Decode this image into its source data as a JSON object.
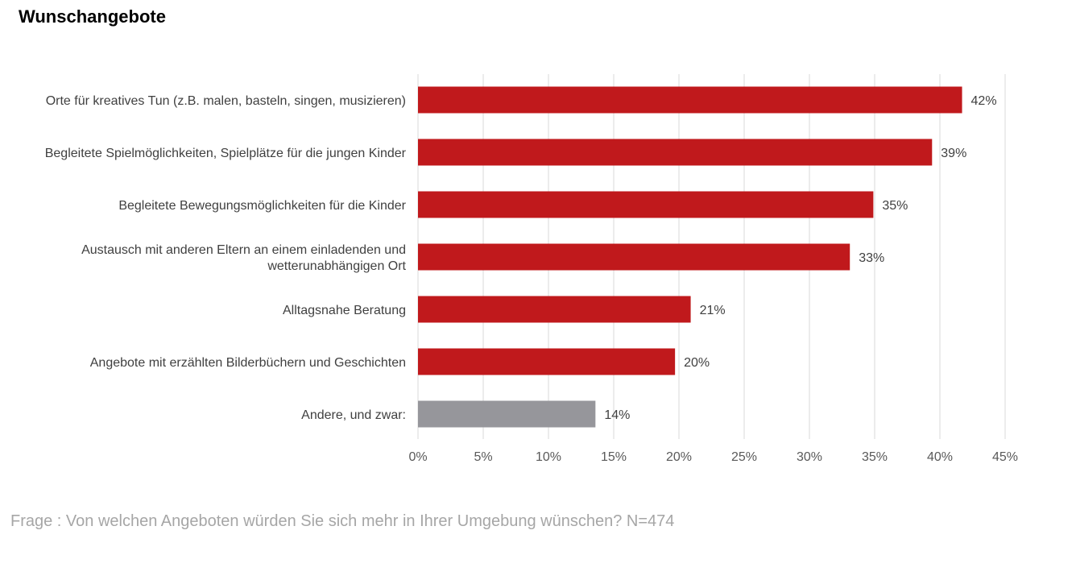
{
  "title": "Wunschangebote",
  "footnote": "Frage : Von welchen Angeboten würden Sie sich mehr in Ihrer Umgebung wünschen? N=474",
  "colors": {
    "primary_bar": "#c0191c",
    "other_bar": "#96969b",
    "grid": "#d9d9d9"
  },
  "chart_data": {
    "type": "bar",
    "orientation": "horizontal",
    "categories": [
      [
        "Orte für kreatives Tun (z.B. malen, basteln, singen, musizieren)"
      ],
      [
        "Begleitete Spielmöglichkeiten, Spielplätze für die jungen Kinder"
      ],
      [
        "Begleitete Bewegungsmöglichkeiten für die Kinder"
      ],
      [
        "Austausch mit anderen Eltern an einem einladenden und",
        "wetterunabhängigen Ort"
      ],
      [
        "Alltagsnahe Beratung"
      ],
      [
        "Angebote mit erzählten Bilderbüchern und Geschichten"
      ],
      [
        "Andere, und zwar:"
      ]
    ],
    "values": [
      41.7,
      39.4,
      34.9,
      33.1,
      20.9,
      19.7,
      13.6
    ],
    "value_labels": [
      "42%",
      "39%",
      "35%",
      "33%",
      "21%",
      "20%",
      "14%"
    ],
    "bar_colors": [
      "primary",
      "primary",
      "primary",
      "primary",
      "primary",
      "primary",
      "other"
    ],
    "xlim": [
      0,
      45
    ],
    "xticks": [
      0,
      5,
      10,
      15,
      20,
      25,
      30,
      35,
      40,
      45
    ],
    "xtick_labels": [
      "0%",
      "5%",
      "10%",
      "15%",
      "20%",
      "25%",
      "30%",
      "35%",
      "40%",
      "45%"
    ],
    "grid": "vertical",
    "legend": "none"
  }
}
